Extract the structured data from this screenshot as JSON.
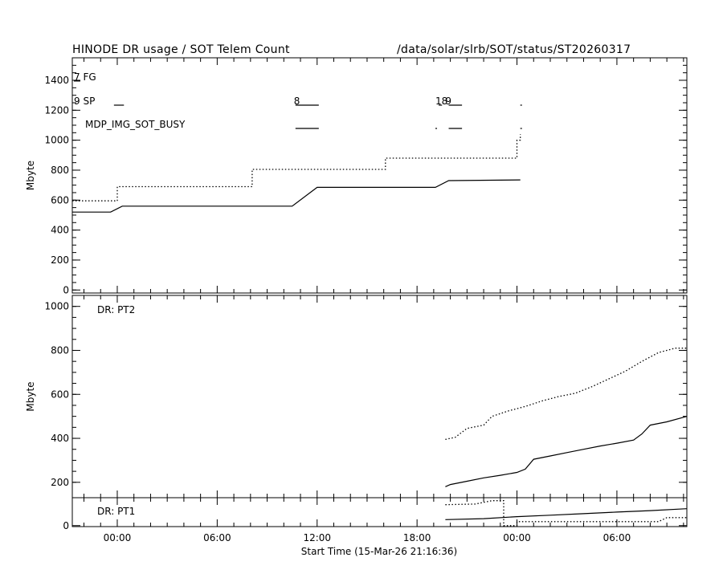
{
  "header": {
    "title": "HINODE DR usage / SOT Telem Count",
    "path": "/data/solar/slrb/SOT/status/ST20260317"
  },
  "colors": {
    "ink": "#000000",
    "background": "#ffffff"
  },
  "xaxis": {
    "label": "Start Time (15-Mar-26 21:16:36)",
    "ticks": [
      "00:00",
      "06:00",
      "12:00",
      "18:00",
      "00:00",
      "06:00"
    ],
    "range_hours": [
      -2.7,
      34.2
    ]
  },
  "chart_data": [
    {
      "type": "line",
      "panel": "top",
      "ylabel": "Mbyte",
      "ylim": [
        -20,
        1550
      ],
      "yticks": [
        0,
        200,
        400,
        600,
        800,
        1000,
        1200,
        1400
      ],
      "labels": [
        "7 FG",
        "9 SP",
        "MDP_IMG_SOT_BUSY"
      ],
      "marker_labels": [
        {
          "text": "8",
          "x": 10.6
        },
        {
          "text": "18",
          "x": 19.1
        },
        {
          "text": "9",
          "x": 19.7
        }
      ],
      "busy_segments": [
        [
          [
            -0.2,
            0.4
          ],
          [
            10.7,
            12.1
          ],
          [
            19.3,
            19.5
          ],
          [
            19.9,
            20.7
          ],
          [
            24.2,
            24.3
          ]
        ],
        [
          [
            10.7,
            12.1
          ],
          [
            19.1,
            19.2
          ],
          [
            19.9,
            20.7
          ],
          [
            24.2,
            24.3
          ]
        ]
      ],
      "series": [
        {
          "style": "solid",
          "x": [
            -2.7,
            -0.4,
            0.3,
            10.5,
            12.0,
            19.1,
            19.9,
            24.2
          ],
          "y": [
            520,
            520,
            560,
            560,
            685,
            685,
            730,
            735
          ]
        },
        {
          "style": "dotted",
          "x": [
            -2.7,
            0.0,
            0.0,
            8.1,
            8.1,
            16.1,
            16.1,
            24.0,
            24.0,
            24.2,
            24.2
          ],
          "y": [
            595,
            595,
            690,
            690,
            805,
            805,
            880,
            880,
            1000,
            1000,
            1040
          ]
        }
      ]
    },
    {
      "type": "line",
      "panel": "middle",
      "ylabel": "Mbyte",
      "ylim": [
        130,
        1050
      ],
      "yticks": [
        200,
        400,
        600,
        800,
        1000
      ],
      "labels": [
        "DR: PT2"
      ],
      "series": [
        {
          "style": "solid",
          "x": [
            19.7,
            20.0,
            21.0,
            22.0,
            23.0,
            24.0,
            24.5,
            25.0,
            26.0,
            27.0,
            28.0,
            29.0,
            30.0,
            31.0,
            31.5,
            32.0,
            33.0,
            34.2
          ],
          "y": [
            180,
            190,
            205,
            220,
            232,
            245,
            260,
            305,
            320,
            335,
            350,
            365,
            378,
            392,
            420,
            460,
            475,
            500
          ]
        },
        {
          "style": "dotted",
          "x": [
            19.7,
            20.3,
            21.0,
            22.0,
            22.5,
            23.5,
            24.5,
            25.5,
            26.5,
            27.5,
            28.5,
            29.5,
            30.5,
            31.5,
            32.5,
            33.5,
            34.2
          ],
          "y": [
            395,
            405,
            445,
            460,
            500,
            525,
            545,
            570,
            590,
            605,
            635,
            670,
            705,
            750,
            790,
            810,
            810
          ]
        }
      ]
    },
    {
      "type": "line",
      "panel": "bottom",
      "ylim": [
        -5,
        140
      ],
      "yticks": [
        0
      ],
      "labels": [
        "DR: PT1"
      ],
      "series": [
        {
          "style": "solid",
          "x": [
            19.7,
            22.0,
            24.0,
            26.0,
            28.0,
            30.0,
            32.0,
            34.2
          ],
          "y": [
            30,
            35,
            45,
            52,
            60,
            68,
            75,
            85
          ]
        },
        {
          "style": "dotted",
          "x": [
            19.7,
            21.5,
            22.5,
            23.2,
            23.2,
            24.0,
            24.0,
            32.5,
            33.0,
            34.2
          ],
          "y": [
            105,
            108,
            125,
            125,
            0,
            0,
            20,
            20,
            40,
            40
          ]
        }
      ]
    }
  ]
}
